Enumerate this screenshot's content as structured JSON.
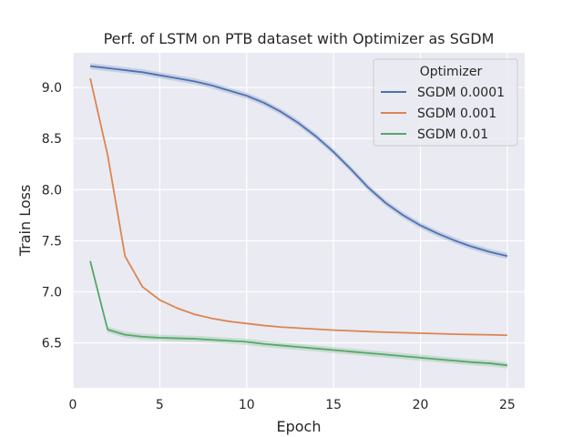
{
  "chart_data": {
    "type": "line",
    "title": "Perf. of LSTM on PTB dataset with Optimizer as SGDM",
    "xlabel": "Epoch",
    "ylabel": "Train Loss",
    "xlim": [
      0,
      26
    ],
    "ylim": [
      6.06,
      9.34
    ],
    "xticks": [
      0,
      5,
      10,
      15,
      20,
      25
    ],
    "yticks": [
      6.5,
      7.0,
      7.5,
      8.0,
      8.5,
      9.0
    ],
    "ytick_labels": [
      "6.5",
      "7.0",
      "7.5",
      "8.0",
      "8.5",
      "9.0"
    ],
    "grid": true,
    "background": "#eaeaf2",
    "legend": {
      "title": "Optimizer",
      "placement": "top-right"
    },
    "x": [
      1,
      2,
      3,
      4,
      5,
      6,
      7,
      8,
      9,
      10,
      11,
      12,
      13,
      14,
      15,
      16,
      17,
      18,
      19,
      20,
      21,
      22,
      23,
      24,
      25
    ],
    "series": [
      {
        "name": "SGDM 0.0001",
        "color": "#4c72b0",
        "values": [
          9.21,
          9.19,
          9.17,
          9.15,
          9.12,
          9.09,
          9.06,
          9.02,
          8.97,
          8.92,
          8.85,
          8.76,
          8.65,
          8.52,
          8.37,
          8.2,
          8.02,
          7.87,
          7.75,
          7.65,
          7.57,
          7.5,
          7.44,
          7.39,
          7.35
        ],
        "band": 0.03
      },
      {
        "name": "SGDM 0.001",
        "color": "#dd8452",
        "values": [
          9.09,
          8.34,
          7.35,
          7.05,
          6.92,
          6.84,
          6.78,
          6.74,
          6.71,
          6.69,
          6.67,
          6.655,
          6.645,
          6.635,
          6.625,
          6.618,
          6.611,
          6.605,
          6.6,
          6.595,
          6.59,
          6.585,
          6.582,
          6.579,
          6.575
        ],
        "band": 0.0
      },
      {
        "name": "SGDM 0.01",
        "color": "#55a868",
        "values": [
          7.3,
          6.63,
          6.58,
          6.56,
          6.55,
          6.545,
          6.54,
          6.53,
          6.52,
          6.51,
          6.49,
          6.475,
          6.46,
          6.445,
          6.43,
          6.415,
          6.4,
          6.385,
          6.37,
          6.355,
          6.34,
          6.325,
          6.31,
          6.3,
          6.28
        ],
        "band": 0.03
      }
    ]
  }
}
